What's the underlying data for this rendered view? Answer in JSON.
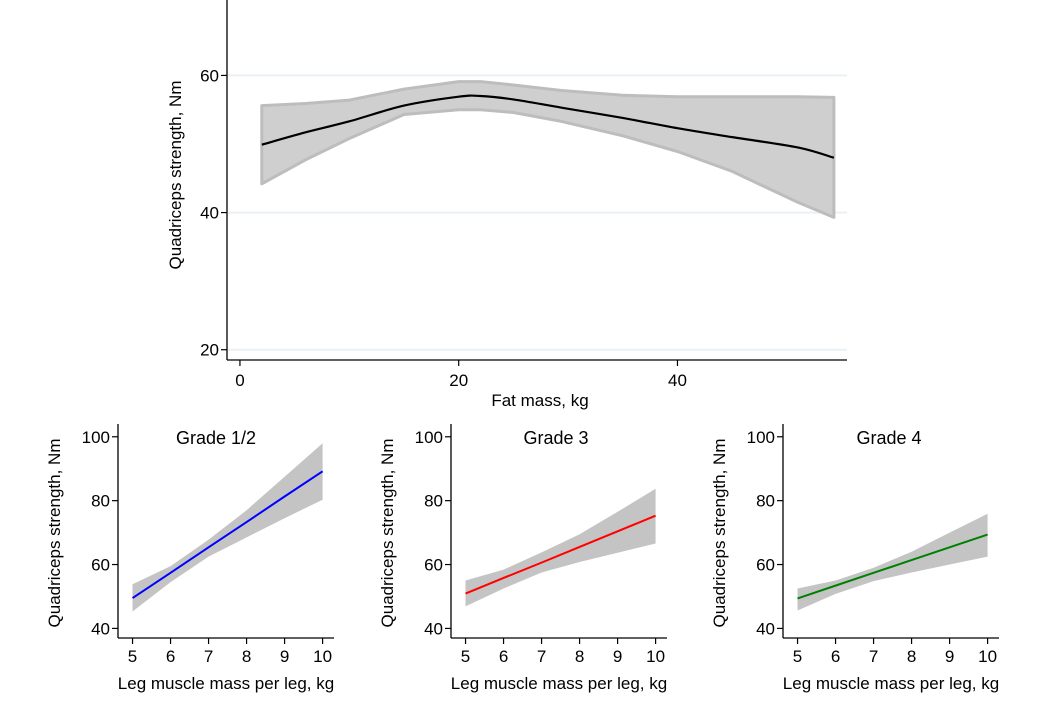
{
  "chart_data": [
    {
      "type": "line",
      "id": "main",
      "title": "",
      "xlabel": "Fat mass, kg",
      "ylabel": "Quadriceps strength, Nm",
      "xlim": [
        -1,
        55.5
      ],
      "ylim": [
        18.5,
        71
      ],
      "xticks": [
        0,
        20,
        40
      ],
      "xtick_labels": [
        "0",
        "20",
        "40"
      ],
      "yticks": [
        20,
        40,
        60
      ],
      "ytick_labels": [
        "20",
        "40",
        "60"
      ],
      "grid": "horizontal",
      "line_color": "#000000",
      "band_color": "#cfcfcf",
      "band_edge_color": "#bdbdbd",
      "x": [
        2,
        6,
        10,
        15,
        20,
        22,
        25,
        29.4,
        35,
        40,
        45,
        51,
        54.3
      ],
      "y": [
        49.9,
        51.7,
        53.3,
        55.6,
        56.9,
        57.0,
        56.5,
        55.3,
        53.8,
        52.3,
        51.0,
        49.5,
        48.0
      ],
      "upper": [
        55.6,
        55.9,
        56.4,
        58.0,
        59.1,
        59.1,
        58.6,
        57.8,
        57.1,
        56.9,
        56.9,
        56.9,
        56.8
      ],
      "lower": [
        44.2,
        47.7,
        50.8,
        54.3,
        55.0,
        55.0,
        54.6,
        53.3,
        51.2,
        48.9,
        46.0,
        41.5,
        39.3
      ]
    },
    {
      "type": "line",
      "id": "grade12",
      "title": "Grade 1/2",
      "xlabel": "Leg muscle mass per leg, kg",
      "ylabel": "Quadriceps strength, Nm",
      "xlim": [
        4.67,
        10.3
      ],
      "ylim": [
        37,
        104
      ],
      "xticks": [
        5,
        6,
        7,
        8,
        9,
        10
      ],
      "xtick_labels": [
        "5",
        "6",
        "7",
        "8",
        "9",
        "10"
      ],
      "yticks": [
        40,
        60,
        80,
        100
      ],
      "ytick_labels": [
        "40",
        "60",
        "80",
        "100"
      ],
      "line_color": "#0000ff",
      "band_color": "#c4c4c4",
      "x": [
        5,
        6,
        7,
        8,
        9,
        10
      ],
      "y": [
        49.5,
        57.4,
        65.4,
        73.3,
        81.3,
        89.2
      ],
      "upper": [
        53.8,
        59.5,
        67.8,
        77.0,
        87.5,
        98.0
      ],
      "lower": [
        45.3,
        54.5,
        62.5,
        68.5,
        74.5,
        80.3
      ]
    },
    {
      "type": "line",
      "id": "grade3",
      "title": "Grade 3",
      "xlabel": "Leg muscle mass per leg, kg",
      "ylabel": "Quadriceps strength, Nm",
      "xlim": [
        4.67,
        10.3
      ],
      "ylim": [
        37,
        104
      ],
      "xticks": [
        5,
        6,
        7,
        8,
        9,
        10
      ],
      "xtick_labels": [
        "5",
        "6",
        "7",
        "8",
        "9",
        "10"
      ],
      "yticks": [
        40,
        60,
        80,
        100
      ],
      "ytick_labels": [
        "40",
        "60",
        "80",
        "100"
      ],
      "line_color": "#ff0000",
      "band_color": "#c4c4c4",
      "x": [
        5,
        6,
        7,
        8,
        9,
        10
      ],
      "y": [
        50.9,
        55.8,
        60.6,
        65.5,
        70.4,
        75.3
      ],
      "upper": [
        55.0,
        58.4,
        63.8,
        69.5,
        76.5,
        83.7
      ],
      "lower": [
        46.9,
        52.5,
        57.5,
        60.8,
        63.7,
        66.6
      ]
    },
    {
      "type": "line",
      "id": "grade4",
      "title": "Grade 4",
      "xlabel": "Leg muscle mass per leg, kg",
      "ylabel": "Quadriceps strength, Nm",
      "xlim": [
        4.67,
        10.3
      ],
      "ylim": [
        37,
        104
      ],
      "xticks": [
        5,
        6,
        7,
        8,
        9,
        10
      ],
      "xtick_labels": [
        "5",
        "6",
        "7",
        "8",
        "9",
        "10"
      ],
      "yticks": [
        40,
        60,
        80,
        100
      ],
      "ytick_labels": [
        "40",
        "60",
        "80",
        "100"
      ],
      "line_color": "#008000",
      "band_color": "#c4c4c4",
      "x": [
        5,
        6,
        7,
        8,
        9,
        10
      ],
      "y": [
        49.4,
        53.4,
        57.4,
        61.4,
        65.4,
        69.4
      ],
      "upper": [
        52.5,
        55.0,
        59.0,
        64.0,
        70.0,
        75.9
      ],
      "lower": [
        45.6,
        50.8,
        54.8,
        57.5,
        60.0,
        62.5
      ]
    }
  ]
}
